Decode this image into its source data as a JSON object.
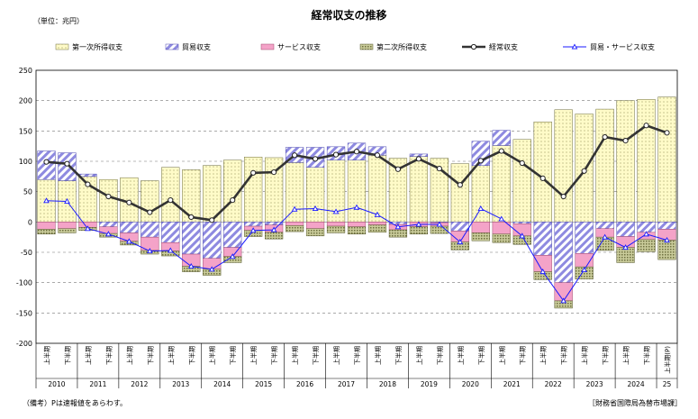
{
  "title": "経常収支の推移",
  "unit": "（単位：兆円）",
  "note": "（備考）Pは速報値をあらわす。",
  "source": "［財務省国際局為替市場課］",
  "colors": {
    "primary_income": "#fffbc8",
    "trade_balance": "#b6b2ea",
    "services_balance": "#f4a3c8",
    "secondary_income": "#c5c796",
    "current_account_line": "#333333",
    "trade_services_line": "#1a1aff"
  },
  "chart_data": {
    "type": "bar",
    "stacked": true,
    "xlabel": "",
    "ylabel": "",
    "ylim": [
      -200,
      250
    ],
    "yticks": [
      -200,
      -150,
      -100,
      -50,
      0,
      50,
      100,
      150,
      200,
      250
    ],
    "legend_position": "top",
    "grid": "horizontal dashed",
    "half_labels": [
      "上半期",
      "下半期"
    ],
    "last_label": "上半期(P)",
    "years": [
      "2010",
      "2011",
      "2012",
      "2013",
      "2014",
      "2015",
      "2016",
      "2017",
      "2018",
      "2019",
      "2020",
      "2021",
      "2022",
      "2023",
      "2024",
      "25"
    ],
    "categories": [
      "2010上",
      "2010下",
      "2011上",
      "2011下",
      "2012上",
      "2012下",
      "2013上",
      "2013下",
      "2014上",
      "2014下",
      "2015上",
      "2015下",
      "2016上",
      "2016下",
      "2017上",
      "2017下",
      "2018上",
      "2018下",
      "2019上",
      "2019下",
      "2020上",
      "2020下",
      "2021上",
      "2021下",
      "2022上",
      "2022下",
      "2023上",
      "2023下",
      "2024上",
      "2024下",
      "2025上"
    ],
    "series": [
      {
        "name": "第一次所得収支",
        "kind": "bar",
        "values": [
          70,
          68,
          75,
          70,
          73,
          68,
          90,
          86,
          93,
          102,
          107,
          106,
          98,
          90,
          102,
          102,
          110,
          105,
          108,
          105,
          96,
          93,
          126,
          136,
          165,
          185,
          178,
          186,
          200,
          202,
          206
        ]
      },
      {
        "name": "貿易収支",
        "kind": "bar",
        "values": [
          47,
          46,
          4,
          -8,
          -18,
          -25,
          -34,
          -53,
          -60,
          -42,
          -7,
          -5,
          25,
          33,
          22,
          28,
          14,
          -4,
          4,
          -1,
          -15,
          40,
          25,
          -3,
          -55,
          -100,
          -52,
          -11,
          -24,
          -17,
          -12
        ]
      },
      {
        "name": "サービス収支",
        "kind": "bar",
        "values": [
          -12,
          -11,
          -9,
          -11,
          -14,
          -22,
          -14,
          -20,
          -18,
          -15,
          -7,
          -12,
          -6,
          -11,
          -7,
          -8,
          -5,
          -9,
          -8,
          -6,
          -18,
          -18,
          -20,
          -20,
          -27,
          -30,
          -22,
          -14,
          -18,
          -12,
          -18
        ]
      },
      {
        "name": "第二次所得収支",
        "kind": "bar",
        "values": [
          -8,
          -7,
          -5,
          -6,
          -6,
          -6,
          -8,
          -9,
          -10,
          -10,
          -10,
          -11,
          -10,
          -12,
          -11,
          -12,
          -12,
          -12,
          -12,
          -12,
          -13,
          -13,
          -14,
          -14,
          -13,
          -12,
          -20,
          -22,
          -25,
          -20,
          -32
        ]
      },
      {
        "name": "経常収支",
        "kind": "line",
        "values": [
          99,
          96,
          62,
          42,
          32,
          16,
          36,
          8,
          3,
          36,
          81,
          82,
          110,
          104,
          111,
          116,
          110,
          87,
          104,
          88,
          61,
          101,
          117,
          97,
          72,
          42,
          84,
          140,
          134,
          159,
          147
        ]
      },
      {
        "name": "貿易・サービス収支",
        "kind": "line",
        "values": [
          35,
          34,
          -11,
          -20,
          -32,
          -48,
          -47,
          -73,
          -78,
          -57,
          -14,
          -13,
          21,
          22,
          17,
          24,
          12,
          -8,
          -4,
          -4,
          -33,
          22,
          5,
          -23,
          -82,
          -130,
          -79,
          -25,
          -42,
          -20,
          -30
        ]
      }
    ]
  }
}
